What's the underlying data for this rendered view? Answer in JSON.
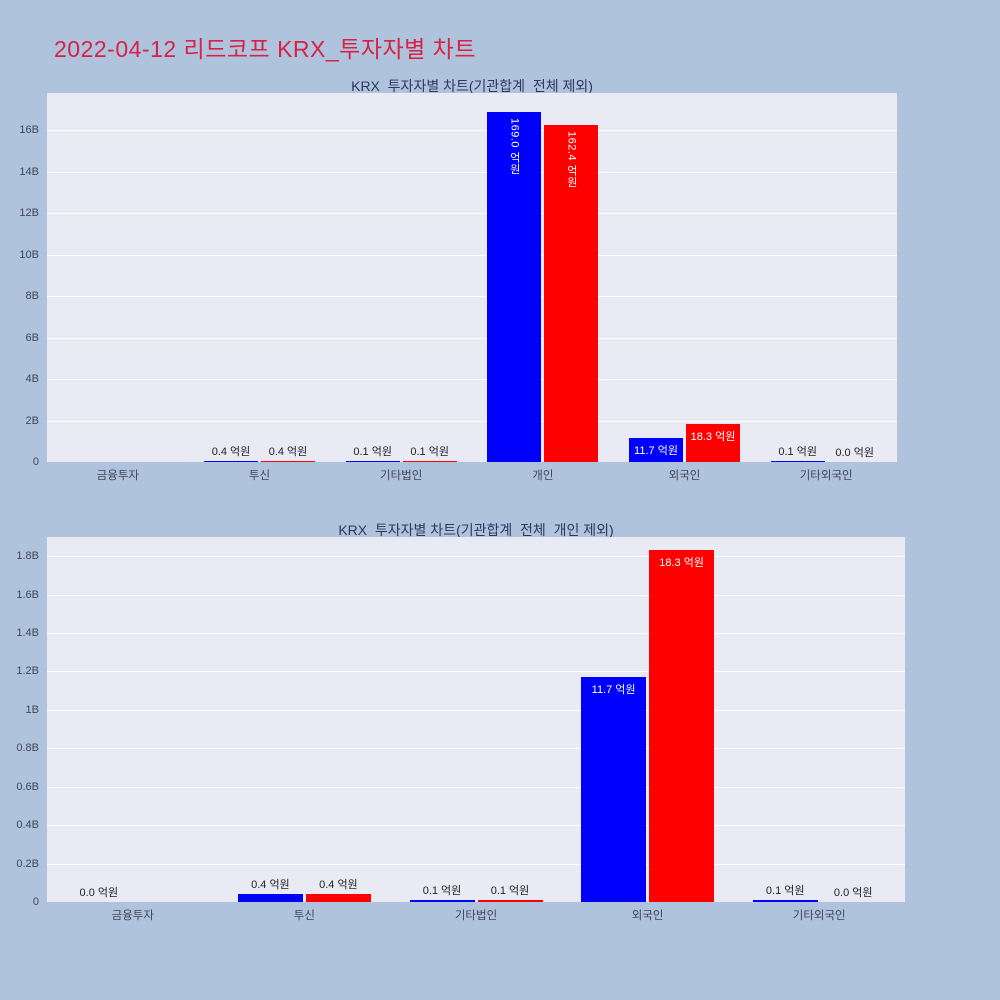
{
  "page": {
    "title": "2022-04-12 리드코프 KRX_투자자별 차트"
  },
  "colors": {
    "background": "#b0c3dd",
    "plot_background": "#e9eaf4",
    "grid": "#ffffff",
    "accent_title": "#d62246",
    "chart_title": "#2a3a5e",
    "axis_text": "#3c4858",
    "series_blue": "#0000ff",
    "series_red": "#ff0000"
  },
  "chart_data": [
    {
      "type": "bar",
      "title": "KRX_투자자별 차트(기관합계_전체 제외)",
      "categories": [
        "금융투자",
        "투신",
        "기타법인",
        "개인",
        "외국인",
        "기타외국인"
      ],
      "series": [
        {
          "name": "blue",
          "color": "#0000ff",
          "values": [
            0.0,
            0.04,
            0.01,
            16.9,
            1.17,
            0.01
          ],
          "labels": [
            "",
            "0.4 억원",
            "0.1 억원",
            "169.0 억원",
            "11.7 억원",
            "0.1 억원"
          ]
        },
        {
          "name": "red",
          "color": "#ff0000",
          "values": [
            0.0,
            0.04,
            0.01,
            16.24,
            1.83,
            0.0
          ],
          "labels": [
            "",
            "0.4 억원",
            "0.1 억원",
            "162.4 억원",
            "18.3 억원",
            "0.0 억원"
          ]
        }
      ],
      "value_unit": "억원",
      "axis_unit": "B",
      "ylim": [
        0,
        17.8
      ],
      "ytick_values": [
        0,
        2,
        4,
        6,
        8,
        10,
        12,
        14,
        16
      ],
      "ytick_labels": [
        "0",
        "2B",
        "4B",
        "6B",
        "8B",
        "10B",
        "12B",
        "14B",
        "16B"
      ],
      "grid": true,
      "legend": "none"
    },
    {
      "type": "bar",
      "title": "KRX_투자자별 차트(기관합계_전체_개인 제외)",
      "categories": [
        "금융투자",
        "투신",
        "기타법인",
        "외국인",
        "기타외국인"
      ],
      "series": [
        {
          "name": "blue",
          "color": "#0000ff",
          "values": [
            0.0,
            0.04,
            0.01,
            1.17,
            0.01
          ],
          "labels": [
            "0.0 억원",
            "0.4 억원",
            "0.1 억원",
            "11.7 억원",
            "0.1 억원"
          ]
        },
        {
          "name": "red",
          "color": "#ff0000",
          "values": [
            0.0,
            0.04,
            0.01,
            1.83,
            0.0
          ],
          "labels": [
            "",
            "0.4 억원",
            "0.1 억원",
            "18.3 억원",
            "0.0 억원"
          ]
        }
      ],
      "value_unit": "억원",
      "axis_unit": "B",
      "ylim": [
        0,
        1.9
      ],
      "ytick_values": [
        0,
        0.2,
        0.4,
        0.6,
        0.8,
        1.0,
        1.2,
        1.4,
        1.6,
        1.8
      ],
      "ytick_labels": [
        "0",
        "0.2B",
        "0.4B",
        "0.6B",
        "0.8B",
        "1B",
        "1.2B",
        "1.4B",
        "1.6B",
        "1.8B"
      ],
      "grid": true,
      "legend": "none"
    }
  ]
}
